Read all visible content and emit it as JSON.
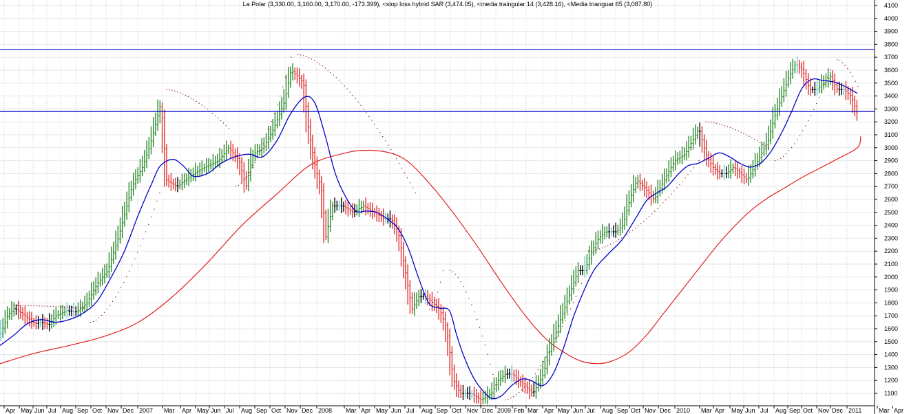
{
  "chart_data": {
    "type": "line",
    "title": "La Polar (3,330.00, 3,160.00, 3,170.00, -173.399), <stop loss hybrid SAR (3,474.05), <media traingular 14 (3,428.16), <Media trianguar 65 (3,087.80)",
    "ylim": [
      1050,
      4150
    ],
    "yticks": [
      "1100",
      "1200",
      "1300",
      "1400",
      "1500",
      "1600",
      "1700",
      "1800",
      "1900",
      "2000",
      "2100",
      "2200",
      "2300",
      "2400",
      "2500",
      "2600",
      "2700",
      "2800",
      "2900",
      "3000",
      "3100",
      "3200",
      "3300",
      "3400",
      "3500",
      "3600",
      "3700",
      "3800",
      "3900",
      "4000",
      "4100"
    ],
    "xticks": [
      "Apr",
      "May",
      "Jun",
      "Jul",
      "Aug",
      "Sep",
      "Oct",
      "Nov",
      "Dec",
      "2007",
      "Mar",
      "Apr",
      "May",
      "Jun",
      "Jul",
      "Aug",
      "Sep",
      "Oct",
      "Nov",
      "Dec",
      "2008",
      "Mar",
      "Apr",
      "May",
      "Jun",
      "Jul",
      "Aug",
      "Sep",
      "Oct",
      "Nov",
      "Dec",
      "2009",
      "Feb",
      "Mar",
      "Apr",
      "May",
      "Jun",
      "Jul",
      "Aug",
      "Sep",
      "Oct",
      "Nov",
      "Dec",
      "2010",
      "Mar",
      "Apr",
      "May",
      "Jun",
      "Jul",
      "Aug",
      "Sep",
      "Oct",
      "Nov",
      "Dec",
      "2011",
      "Mar",
      "Apr"
    ],
    "grid": true,
    "horizontal_lines": [
      3760,
      3280
    ],
    "colors": {
      "up": "#2a8a2a",
      "down": "#e03030",
      "neutral": "#000000",
      "flat": "#66c8d8",
      "sar": "#8b1a1a",
      "ma14": "#0000c8",
      "ma65": "#e02020",
      "hline": "#0000c8"
    },
    "price_path": [
      [
        0,
        1560
      ],
      [
        10,
        1700
      ],
      [
        20,
        1760
      ],
      [
        30,
        1720
      ],
      [
        40,
        1680
      ],
      [
        50,
        1640
      ],
      [
        60,
        1650
      ],
      [
        70,
        1630
      ],
      [
        80,
        1700
      ],
      [
        95,
        1740
      ],
      [
        110,
        1730
      ],
      [
        125,
        1800
      ],
      [
        140,
        1950
      ],
      [
        155,
        2050
      ],
      [
        170,
        2300
      ],
      [
        180,
        2500
      ],
      [
        190,
        2700
      ],
      [
        205,
        2850
      ],
      [
        215,
        3000
      ],
      [
        225,
        3200
      ],
      [
        232,
        3350
      ],
      [
        240,
        2750
      ],
      [
        255,
        2700
      ],
      [
        270,
        2760
      ],
      [
        285,
        2820
      ],
      [
        300,
        2860
      ],
      [
        315,
        2900
      ],
      [
        330,
        3000
      ],
      [
        345,
        2900
      ],
      [
        355,
        2700
      ],
      [
        365,
        2950
      ],
      [
        380,
        3000
      ],
      [
        395,
        3150
      ],
      [
        410,
        3350
      ],
      [
        420,
        3600
      ],
      [
        430,
        3550
      ],
      [
        438,
        3500
      ],
      [
        445,
        3150
      ],
      [
        455,
        2850
      ],
      [
        465,
        2650
      ],
      [
        470,
        2300
      ],
      [
        480,
        2550
      ],
      [
        495,
        2550
      ],
      [
        510,
        2500
      ],
      [
        525,
        2550
      ],
      [
        540,
        2500
      ],
      [
        555,
        2450
      ],
      [
        565,
        2450
      ],
      [
        575,
        2350
      ],
      [
        585,
        2050
      ],
      [
        595,
        1750
      ],
      [
        605,
        1850
      ],
      [
        615,
        1850
      ],
      [
        625,
        1800
      ],
      [
        635,
        1750
      ],
      [
        645,
        1600
      ],
      [
        655,
        1200
      ],
      [
        665,
        1100
      ],
      [
        680,
        1100
      ],
      [
        695,
        1050
      ],
      [
        710,
        1100
      ],
      [
        720,
        1200
      ],
      [
        730,
        1250
      ],
      [
        740,
        1250
      ],
      [
        750,
        1200
      ],
      [
        760,
        1150
      ],
      [
        770,
        1100
      ],
      [
        785,
        1250
      ],
      [
        795,
        1450
      ],
      [
        805,
        1600
      ],
      [
        815,
        1750
      ],
      [
        825,
        1900
      ],
      [
        835,
        2050
      ],
      [
        845,
        2050
      ],
      [
        855,
        2200
      ],
      [
        865,
        2300
      ],
      [
        875,
        2350
      ],
      [
        890,
        2350
      ],
      [
        900,
        2400
      ],
      [
        910,
        2600
      ],
      [
        920,
        2750
      ],
      [
        930,
        2700
      ],
      [
        945,
        2600
      ],
      [
        955,
        2700
      ],
      [
        965,
        2800
      ],
      [
        975,
        2900
      ],
      [
        990,
        2950
      ],
      [
        1000,
        3050
      ],
      [
        1010,
        3150
      ],
      [
        1020,
        2950
      ],
      [
        1030,
        2850
      ],
      [
        1040,
        2800
      ],
      [
        1050,
        2800
      ],
      [
        1060,
        2850
      ],
      [
        1070,
        2800
      ],
      [
        1080,
        2750
      ],
      [
        1090,
        2850
      ],
      [
        1100,
        2950
      ],
      [
        1110,
        3050
      ],
      [
        1120,
        3250
      ],
      [
        1130,
        3400
      ],
      [
        1140,
        3550
      ],
      [
        1150,
        3650
      ],
      [
        1160,
        3600
      ],
      [
        1170,
        3450
      ],
      [
        1180,
        3450
      ],
      [
        1190,
        3500
      ],
      [
        1200,
        3550
      ],
      [
        1210,
        3450
      ],
      [
        1220,
        3450
      ],
      [
        1230,
        3400
      ],
      [
        1240,
        3250
      ]
    ],
    "ma14_path": [
      [
        0,
        1470
      ],
      [
        20,
        1550
      ],
      [
        40,
        1640
      ],
      [
        60,
        1670
      ],
      [
        80,
        1650
      ],
      [
        100,
        1670
      ],
      [
        120,
        1720
      ],
      [
        140,
        1810
      ],
      [
        160,
        1990
      ],
      [
        180,
        2200
      ],
      [
        200,
        2480
      ],
      [
        220,
        2730
      ],
      [
        232,
        2860
      ],
      [
        250,
        2910
      ],
      [
        265,
        2860
      ],
      [
        280,
        2780
      ],
      [
        300,
        2800
      ],
      [
        320,
        2880
      ],
      [
        340,
        2930
      ],
      [
        360,
        2950
      ],
      [
        380,
        2930
      ],
      [
        400,
        3050
      ],
      [
        420,
        3260
      ],
      [
        440,
        3390
      ],
      [
        455,
        3350
      ],
      [
        470,
        3100
      ],
      [
        485,
        2800
      ],
      [
        500,
        2620
      ],
      [
        515,
        2510
      ],
      [
        530,
        2510
      ],
      [
        545,
        2500
      ],
      [
        560,
        2450
      ],
      [
        575,
        2380
      ],
      [
        590,
        2230
      ],
      [
        605,
        2000
      ],
      [
        620,
        1800
      ],
      [
        635,
        1760
      ],
      [
        650,
        1740
      ],
      [
        660,
        1560
      ],
      [
        670,
        1400
      ],
      [
        685,
        1220
      ],
      [
        700,
        1110
      ],
      [
        712,
        1060
      ],
      [
        725,
        1080
      ],
      [
        740,
        1160
      ],
      [
        755,
        1210
      ],
      [
        768,
        1200
      ],
      [
        785,
        1160
      ],
      [
        800,
        1250
      ],
      [
        815,
        1450
      ],
      [
        830,
        1700
      ],
      [
        845,
        1900
      ],
      [
        860,
        2060
      ],
      [
        880,
        2180
      ],
      [
        900,
        2290
      ],
      [
        920,
        2460
      ],
      [
        935,
        2590
      ],
      [
        950,
        2650
      ],
      [
        965,
        2700
      ],
      [
        980,
        2790
      ],
      [
        995,
        2860
      ],
      [
        1010,
        2880
      ],
      [
        1025,
        2920
      ],
      [
        1040,
        2960
      ],
      [
        1055,
        2930
      ],
      [
        1070,
        2880
      ],
      [
        1085,
        2850
      ],
      [
        1100,
        2880
      ],
      [
        1115,
        2970
      ],
      [
        1130,
        3110
      ],
      [
        1145,
        3280
      ],
      [
        1160,
        3460
      ],
      [
        1175,
        3530
      ],
      [
        1190,
        3520
      ],
      [
        1205,
        3510
      ],
      [
        1220,
        3480
      ],
      [
        1240,
        3420
      ]
    ],
    "ma65_path": [
      [
        0,
        1330
      ],
      [
        50,
        1410
      ],
      [
        100,
        1470
      ],
      [
        150,
        1540
      ],
      [
        200,
        1650
      ],
      [
        250,
        1850
      ],
      [
        300,
        2110
      ],
      [
        350,
        2400
      ],
      [
        400,
        2640
      ],
      [
        450,
        2870
      ],
      [
        500,
        2960
      ],
      [
        530,
        2980
      ],
      [
        555,
        2970
      ],
      [
        575,
        2940
      ],
      [
        595,
        2870
      ],
      [
        625,
        2700
      ],
      [
        655,
        2500
      ],
      [
        690,
        2240
      ],
      [
        725,
        1960
      ],
      [
        760,
        1700
      ],
      [
        790,
        1520
      ],
      [
        815,
        1420
      ],
      [
        840,
        1350
      ],
      [
        865,
        1330
      ],
      [
        885,
        1350
      ],
      [
        910,
        1420
      ],
      [
        935,
        1550
      ],
      [
        960,
        1720
      ],
      [
        985,
        1890
      ],
      [
        1010,
        2060
      ],
      [
        1035,
        2230
      ],
      [
        1060,
        2380
      ],
      [
        1085,
        2510
      ],
      [
        1110,
        2610
      ],
      [
        1135,
        2690
      ],
      [
        1160,
        2770
      ],
      [
        1185,
        2840
      ],
      [
        1210,
        2910
      ],
      [
        1240,
        3000
      ],
      [
        1245,
        3088
      ]
    ],
    "sar_segments": [
      [
        [
          20,
          1780
        ],
        [
          120,
          1760
        ]
      ],
      [
        [
          130,
          1650
        ],
        [
          230,
          2650
        ]
      ],
      [
        [
          240,
          3450
        ],
        [
          330,
          3150
        ]
      ],
      [
        [
          340,
          2700
        ],
        [
          420,
          3700
        ]
      ],
      [
        [
          430,
          3720
        ],
        [
          600,
          2650
        ]
      ],
      [
        [
          620,
          1750
        ],
        [
          640,
          2050
        ]
      ],
      [
        [
          650,
          2050
        ],
        [
          720,
          1080
        ]
      ],
      [
        [
          730,
          1050
        ],
        [
          840,
          1950
        ]
      ],
      [
        [
          850,
          2200
        ],
        [
          1010,
          2900
        ]
      ],
      [
        [
          1020,
          3200
        ],
        [
          1110,
          3000
        ]
      ],
      [
        [
          1120,
          2900
        ],
        [
          1200,
          3600
        ]
      ],
      [
        [
          1210,
          3680
        ],
        [
          1240,
          3474
        ]
      ]
    ]
  }
}
